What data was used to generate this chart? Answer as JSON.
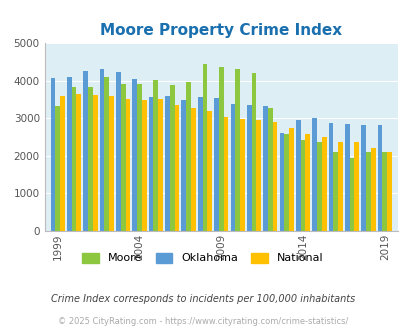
{
  "title": "Moore Property Crime Index",
  "title_color": "#1a6faf",
  "subtitle": "Crime Index corresponds to incidents per 100,000 inhabitants",
  "subtitle_color": "#444444",
  "footer": "© 2025 CityRating.com - https://www.cityrating.com/crime-statistics/",
  "footer_color": "#aaaaaa",
  "years": [
    1999,
    2000,
    2001,
    2002,
    2003,
    2004,
    2005,
    2006,
    2007,
    2008,
    2009,
    2010,
    2011,
    2012,
    2013,
    2014,
    2015,
    2016,
    2017,
    2018,
    2019
  ],
  "moore": [
    3310,
    3840,
    3820,
    4100,
    3910,
    3920,
    4010,
    3880,
    3970,
    4450,
    4360,
    4300,
    4190,
    3260,
    2590,
    2410,
    2370,
    2090,
    1930,
    2110,
    2090
  ],
  "oklahoma": [
    4060,
    4100,
    4250,
    4310,
    4220,
    4040,
    3560,
    3590,
    3490,
    3560,
    3540,
    3380,
    3360,
    3320,
    2600,
    2940,
    3000,
    2870,
    2840,
    2820,
    2830
  ],
  "national": [
    3580,
    3640,
    3620,
    3580,
    3520,
    3490,
    3520,
    3340,
    3260,
    3200,
    3040,
    2970,
    2960,
    2890,
    2730,
    2590,
    2490,
    2360,
    2360,
    2200,
    2110
  ],
  "moore_color": "#8dc63f",
  "oklahoma_color": "#5b9bd5",
  "national_color": "#ffc000",
  "ylim": [
    0,
    5000
  ],
  "yticks": [
    0,
    1000,
    2000,
    3000,
    4000,
    5000
  ],
  "plot_bg": "#ddeef5",
  "xtick_labels": [
    "1999",
    "2004",
    "2009",
    "2014",
    "2019"
  ],
  "xtick_positions": [
    1999,
    2004,
    2009,
    2014,
    2019
  ],
  "bar_width": 0.29,
  "legend_labels": [
    "Moore",
    "Oklahoma",
    "National"
  ],
  "figsize": [
    4.06,
    3.3
  ],
  "dpi": 100
}
